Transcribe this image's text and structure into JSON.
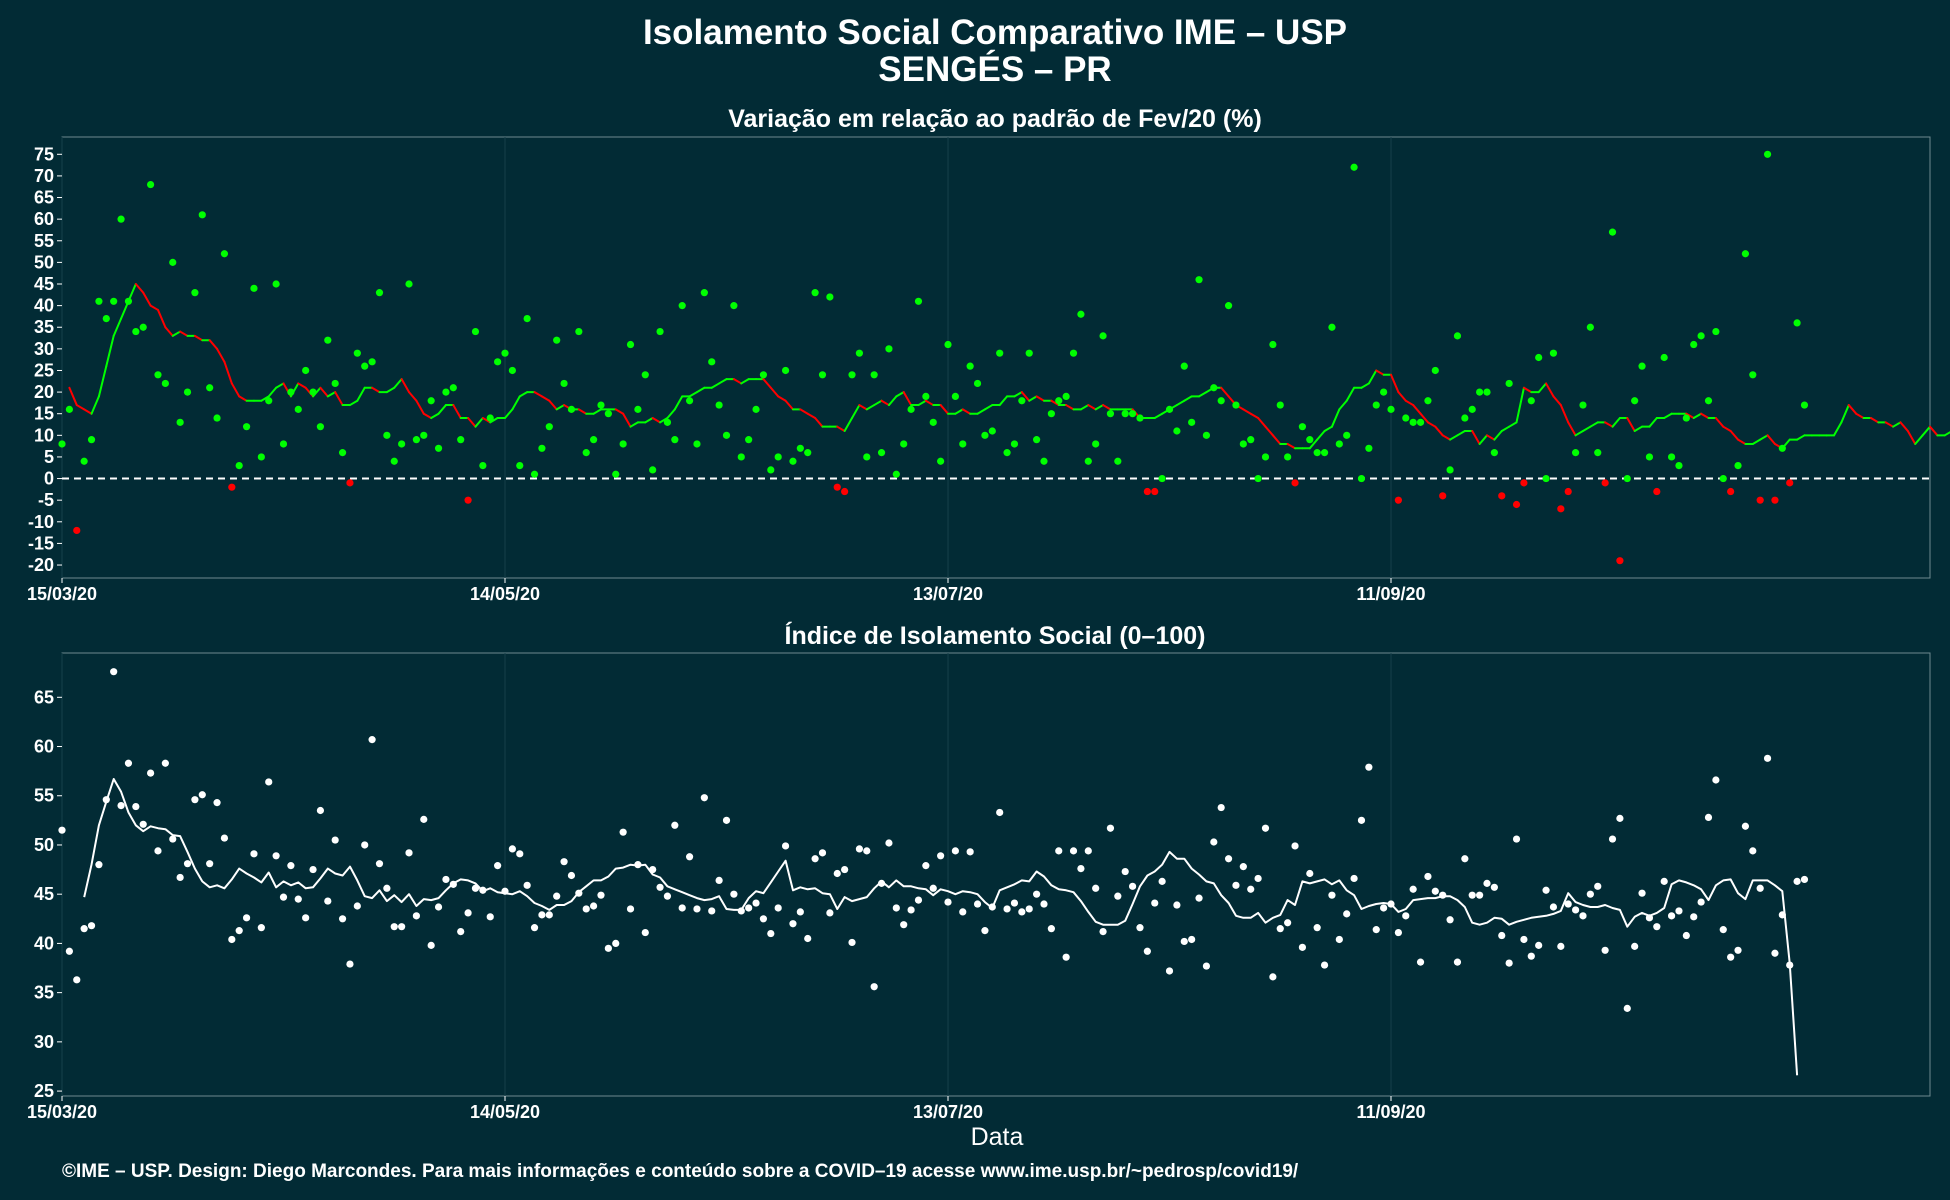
{
  "header": {
    "title": "Isolamento Social Comparativo IME – USP",
    "subtitle": "SENGÉS – PR"
  },
  "footer": "©IME – USP. Design: Diego Marcondes. Para mais informações e conteúdo sobre a COVID–19 acesse www.ime.usp.br/~pedrosp/covid19/",
  "colors": {
    "background": "#022b35",
    "positive": "#00ff00",
    "negative": "#ff0000",
    "index": "#ffffff"
  },
  "chart_data": [
    {
      "type": "scatter",
      "title": "Variação em relação ao padrão de Fev/20 (%)",
      "xlabel": "",
      "ylabel": "",
      "x_start": "15/03/20",
      "x_end": "23/11/20",
      "x_ticks": [
        "15/03/20",
        "14/05/20",
        "13/07/20",
        "11/09/20"
      ],
      "y_ticks": [
        75,
        70,
        65,
        60,
        55,
        50,
        45,
        40,
        35,
        30,
        25,
        20,
        15,
        10,
        5,
        0,
        -5,
        -10,
        -15,
        -20
      ],
      "ylim": [
        -23,
        79
      ],
      "reference_line": 0,
      "series": [
        {
          "values": [
            8,
            16,
            -12,
            4,
            9,
            41,
            37,
            41,
            60,
            41,
            34,
            35,
            68,
            24,
            22,
            50,
            13,
            20,
            43,
            61,
            21,
            14,
            52,
            -2,
            3,
            12,
            44,
            5,
            18,
            45,
            8,
            20,
            16,
            25,
            20,
            12,
            32,
            22,
            6,
            -1,
            29,
            26,
            27,
            43,
            10,
            4,
            8,
            45,
            9,
            10,
            18,
            7,
            20,
            21,
            9,
            -5,
            34,
            3,
            14,
            27,
            29,
            25,
            3,
            37,
            1,
            7,
            12,
            32,
            22,
            16,
            34,
            6,
            9,
            17,
            15,
            1,
            8,
            31,
            16,
            24,
            2,
            34,
            13,
            9,
            40,
            18,
            8,
            43,
            27,
            17,
            10,
            40,
            5,
            9,
            16,
            24,
            2,
            5,
            25,
            4,
            7,
            6,
            43,
            24,
            42,
            -2,
            -3,
            24,
            29,
            5,
            24,
            6,
            30,
            1,
            8,
            16,
            41,
            19,
            13,
            4,
            31,
            19,
            8,
            26,
            22,
            10,
            11,
            29,
            6,
            8,
            18,
            29,
            9,
            4,
            15,
            18,
            19,
            29,
            38,
            4,
            8,
            33,
            15,
            4,
            15,
            15,
            14,
            -3,
            -3,
            0,
            16,
            11,
            26,
            13,
            46,
            10,
            21,
            18,
            40,
            17,
            8,
            9,
            0,
            5,
            31,
            17,
            5,
            -1,
            12,
            9,
            6,
            6,
            35,
            8,
            10,
            72,
            0,
            7,
            17,
            20,
            16,
            -5,
            14,
            13,
            13,
            18,
            25,
            -4,
            2,
            33,
            14,
            16,
            20,
            20,
            6,
            -4,
            22,
            -6,
            -1,
            18,
            28,
            0,
            29,
            -7,
            -3,
            6,
            17,
            35,
            6,
            -1,
            57,
            -19,
            0,
            18,
            26,
            5,
            -3,
            28,
            5,
            3,
            14,
            31,
            33,
            18,
            34,
            0,
            -3,
            3,
            52,
            24,
            -5,
            75,
            -5,
            7,
            -1,
            36,
            17
          ]
        },
        {
          "values": [
            21,
            17,
            16,
            15,
            19,
            26,
            33,
            37,
            41,
            45,
            43,
            40,
            39,
            35,
            33,
            34,
            33,
            33,
            32,
            32,
            30,
            27,
            22,
            19,
            18,
            18,
            18,
            19,
            21,
            22,
            19,
            22,
            21,
            19,
            21,
            19,
            20,
            17,
            17,
            18,
            21,
            21,
            20,
            20,
            21,
            23,
            20,
            18,
            15,
            14,
            15,
            17,
            17,
            14,
            14,
            12,
            14,
            13,
            14,
            14,
            16,
            19,
            20,
            20,
            19,
            18,
            16,
            17,
            16,
            16,
            15,
            15,
            16,
            16,
            16,
            15,
            12,
            13,
            13,
            14,
            13,
            14,
            16,
            19,
            19,
            20,
            21,
            21,
            22,
            23,
            23,
            22,
            23,
            23,
            23,
            21,
            19,
            18,
            16,
            16,
            15,
            14,
            12,
            12,
            12,
            11,
            14,
            17,
            16,
            17,
            18,
            17,
            19,
            20,
            17,
            17,
            18,
            17,
            17,
            15,
            15,
            16,
            15,
            15,
            16,
            17,
            17,
            19,
            19,
            20,
            18,
            19,
            18,
            18,
            17,
            17,
            16,
            16,
            17,
            16,
            17,
            16,
            16,
            16,
            16,
            14,
            14,
            14,
            15,
            16,
            17,
            18,
            19,
            19,
            20,
            21,
            21,
            19,
            17,
            16,
            15,
            14,
            12,
            10,
            8,
            8,
            7,
            7,
            7,
            9,
            11,
            12,
            16,
            18,
            21,
            21,
            22,
            25,
            24,
            24,
            20,
            18,
            17,
            15,
            13,
            12,
            10,
            9,
            10,
            11,
            11,
            8,
            10,
            9,
            11,
            12,
            13,
            21,
            20,
            20,
            22,
            19,
            17,
            13,
            10,
            11,
            12,
            13,
            13,
            12,
            14,
            14,
            11,
            12,
            12,
            14,
            14,
            15,
            15,
            15,
            14,
            15,
            14,
            14,
            12,
            11,
            9,
            8,
            8,
            9,
            10,
            8,
            7,
            9,
            9,
            10,
            10,
            10,
            10,
            10,
            13,
            17,
            15,
            14,
            14,
            13,
            13,
            12,
            13,
            11,
            8,
            10,
            12,
            10,
            10,
            11,
            14,
            18,
            19,
            20,
            18,
            17,
            19,
            19,
            16,
            15,
            20,
            21,
            20,
            18,
            17
          ]
        }
      ]
    },
    {
      "type": "scatter",
      "title": "Índice de Isolamento Social (0–100)",
      "xlabel": "Data",
      "ylabel": "",
      "x_start": "15/03/20",
      "x_end": "23/11/20",
      "x_ticks": [
        "15/03/20",
        "14/05/20",
        "13/07/20",
        "11/09/20"
      ],
      "y_ticks": [
        65,
        60,
        55,
        50,
        45,
        40,
        35,
        30,
        25
      ],
      "ylim": [
        24.5,
        69.5
      ],
      "series": [
        {
          "values": [
            51.5,
            39.2,
            36.3,
            41.5,
            41.8,
            48.0,
            54.6,
            67.6,
            54.0,
            58.3,
            53.9,
            52.1,
            57.3,
            49.4,
            58.3,
            50.6,
            46.7,
            48.1,
            54.6,
            55.1,
            48.1,
            54.3,
            50.7,
            40.4,
            41.3,
            42.6,
            49.1,
            41.6,
            56.4,
            48.9,
            44.7,
            47.9,
            44.5,
            42.6,
            47.5,
            53.5,
            44.3,
            50.5,
            42.5,
            37.9,
            43.8,
            50.0,
            60.7,
            48.1,
            45.6,
            41.7,
            41.7,
            49.2,
            42.8,
            52.6,
            39.8,
            43.7,
            46.5,
            46.0,
            41.2,
            43.1,
            45.6,
            45.4,
            42.7,
            47.9,
            45.3,
            49.6,
            49.1,
            45.9,
            41.6,
            42.9,
            42.9,
            44.8,
            48.3,
            46.9,
            45.1,
            43.5,
            43.8,
            44.9,
            39.5,
            40.0,
            51.3,
            43.5,
            48.0,
            41.1,
            47.5,
            45.7,
            44.8,
            52.0,
            43.6,
            48.8,
            43.5,
            54.8,
            43.3,
            46.4,
            52.5,
            45.0,
            43.3,
            43.6,
            44.1,
            42.5,
            41.0,
            43.6,
            49.9,
            42.0,
            43.2,
            40.5,
            48.6,
            49.2,
            43.1,
            47.1,
            47.5,
            40.1,
            49.6,
            49.4,
            35.6,
            46.1,
            50.2,
            43.6,
            41.9,
            43.4,
            44.4,
            47.9,
            45.6,
            48.9,
            44.2,
            49.4,
            43.2,
            49.3,
            44.0,
            41.3,
            43.7,
            53.3,
            43.5,
            44.1,
            43.2,
            43.5,
            45.0,
            44.0,
            41.5,
            49.4,
            38.6,
            49.4,
            47.6,
            49.4,
            45.6,
            41.2,
            51.7,
            44.8,
            47.3,
            45.8,
            41.6,
            39.2,
            44.1,
            46.3,
            37.2,
            43.9,
            40.2,
            40.4,
            44.6,
            37.7,
            50.3,
            53.8,
            48.6,
            45.9,
            47.8,
            45.5,
            46.6,
            51.7,
            36.6,
            41.5,
            42.1,
            49.9,
            39.6,
            47.1,
            41.6,
            37.8,
            44.9,
            40.4,
            43.0,
            46.6,
            52.5,
            57.9,
            41.4,
            43.6,
            44.0,
            41.1,
            42.8,
            45.5,
            38.1,
            46.8,
            45.3,
            44.9,
            42.4,
            38.1,
            48.6,
            44.9,
            44.9,
            46.1,
            45.7,
            40.8,
            38.0,
            50.6,
            40.4,
            38.7,
            39.8,
            45.4,
            43.7,
            39.7,
            44.0,
            43.4,
            42.8,
            45.0,
            45.8,
            39.3,
            50.6,
            52.7,
            33.4,
            39.7,
            45.1,
            42.6,
            41.7,
            46.3,
            42.8,
            43.3,
            40.8,
            42.7,
            44.2,
            52.8,
            56.6,
            41.4,
            38.6,
            39.3,
            51.9,
            49.4,
            45.6,
            58.8,
            39.0,
            42.9,
            37.8,
            46.3,
            46.5
          ]
        },
        {
          "values": [
            44.7,
            48.0,
            52.0,
            54.4,
            56.7,
            55.4,
            53.3,
            52.0,
            51.4,
            51.9,
            51.7,
            51.6,
            51.0,
            50.9,
            49.3,
            47.6,
            46.3,
            45.7,
            45.9,
            45.6,
            46.5,
            47.6,
            47.1,
            46.7,
            46.2,
            47.2,
            45.7,
            46.3,
            45.9,
            46.2,
            45.6,
            45.7,
            46.6,
            47.6,
            47.1,
            46.9,
            47.8,
            46.4,
            44.8,
            44.6,
            45.4,
            44.3,
            44.9,
            44.2,
            45.0,
            43.8,
            44.5,
            44.4,
            44.6,
            45.4,
            46.1,
            46.5,
            46.4,
            46.1,
            45.3,
            45.6,
            45.2,
            45.1,
            45.0,
            45.3,
            44.8,
            44.1,
            43.8,
            43.4,
            43.9,
            43.9,
            44.3,
            45.2,
            45.8,
            46.4,
            46.4,
            46.8,
            47.6,
            47.7,
            48.0,
            47.9,
            48.0,
            47.0,
            46.7,
            45.8,
            45.5,
            45.2,
            44.9,
            44.6,
            44.4,
            44.5,
            44.8,
            43.5,
            43.4,
            43.4,
            44.6,
            45.3,
            45.1,
            46.2,
            47.3,
            48.4,
            45.4,
            45.7,
            45.5,
            45.6,
            45.1,
            45.0,
            43.5,
            44.7,
            44.3,
            44.5,
            44.7,
            45.6,
            46.3,
            45.7,
            46.4,
            45.8,
            45.8,
            45.6,
            45.5,
            44.9,
            45.5,
            45.3,
            45.0,
            45.3,
            45.2,
            45.0,
            44.2,
            43.6,
            45.4,
            45.7,
            46.0,
            46.4,
            46.3,
            47.3,
            46.8,
            45.9,
            45.5,
            45.4,
            45.2,
            44.3,
            43.2,
            42.2,
            41.9,
            41.9,
            41.9,
            42.3,
            44.0,
            45.8,
            46.9,
            47.3,
            48.0,
            49.3,
            48.6,
            48.6,
            47.6,
            47.0,
            46.3,
            46.1,
            44.9,
            44.1,
            42.8,
            42.6,
            42.6,
            43.1,
            42.1,
            42.6,
            42.9,
            44.4,
            43.9,
            46.3,
            46.1,
            46.3,
            46.5,
            46.0,
            46.4,
            45.4,
            44.9,
            43.5,
            43.8,
            44.0,
            44.1,
            44.0,
            43.2,
            43.5,
            44.4,
            44.5,
            44.6,
            44.6,
            44.8,
            44.8,
            44.4,
            43.7,
            42.1,
            41.9,
            42.1,
            42.6,
            42.5,
            41.9,
            42.2,
            42.4,
            42.6,
            42.7,
            42.8,
            43.0,
            43.3,
            45.1,
            44.2,
            43.9,
            43.7,
            43.7,
            43.9,
            43.6,
            43.4,
            41.7,
            42.7,
            43.1,
            42.8,
            43.1,
            43.6,
            46.0,
            46.4,
            46.2,
            45.9,
            45.5,
            44.4,
            45.9,
            46.4,
            46.5,
            45.1,
            44.5,
            46.4,
            46.4,
            46.4,
            45.9,
            45.3,
            38.0,
            26.6
          ]
        }
      ]
    }
  ]
}
